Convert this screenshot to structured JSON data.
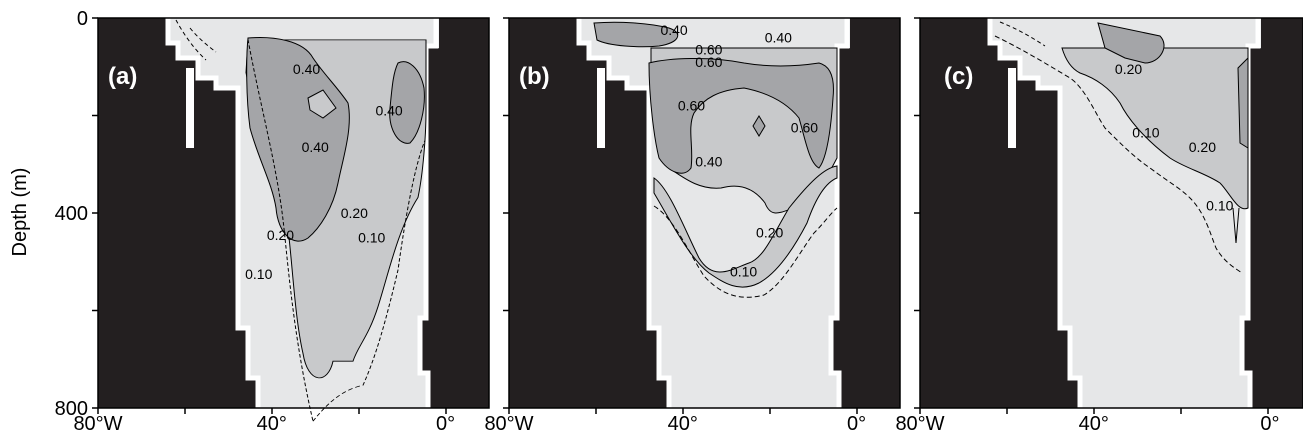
{
  "chart_data": [
    {
      "type": "contour",
      "panel_label": "(a)",
      "ylabel": "Depth (m)",
      "xlim": [
        -80,
        10
      ],
      "ylim": [
        0,
        800
      ],
      "x_ticks": [
        -80,
        -40,
        0
      ],
      "x_tick_labels": [
        "80°W",
        "40°",
        "0°"
      ],
      "y_ticks": [
        0,
        400,
        800
      ],
      "y_tick_labels": [
        "0",
        "400",
        "800"
      ],
      "contour_levels": [
        "0.10",
        "0.20",
        "0.40"
      ],
      "contour_labels": [
        {
          "text": "0.40",
          "x": -32,
          "y": 115
        },
        {
          "text": "0.40",
          "x": -30,
          "y": 275
        },
        {
          "text": "0.40",
          "x": -13,
          "y": 200
        },
        {
          "text": "0.20",
          "x": -38,
          "y": 455
        },
        {
          "text": "0.20",
          "x": -21,
          "y": 410
        },
        {
          "text": "0.10",
          "x": -17,
          "y": 460
        },
        {
          "text": "0.10",
          "x": -43,
          "y": 535
        }
      ]
    },
    {
      "type": "contour",
      "panel_label": "(b)",
      "ylabel": "",
      "xlim": [
        -80,
        10
      ],
      "ylim": [
        0,
        800
      ],
      "x_ticks": [
        -80,
        -40,
        0
      ],
      "x_tick_labels": [
        "80°W",
        "40°",
        "0°"
      ],
      "y_ticks": [
        0,
        400,
        800
      ],
      "y_tick_labels": [],
      "contour_levels": [
        "0.10",
        "0.20",
        "0.40",
        "0.60"
      ],
      "contour_labels": [
        {
          "text": "0.40",
          "x": -42,
          "y": 35
        },
        {
          "text": "0.40",
          "x": -18,
          "y": 50
        },
        {
          "text": "0.60",
          "x": -34,
          "y": 75
        },
        {
          "text": "0.60",
          "x": -34,
          "y": 100
        },
        {
          "text": "0.60",
          "x": -38,
          "y": 190
        },
        {
          "text": "0.60",
          "x": -12,
          "y": 235
        },
        {
          "text": "0.40",
          "x": -34,
          "y": 305
        },
        {
          "text": "0.20",
          "x": -20,
          "y": 450
        },
        {
          "text": "0.10",
          "x": -26,
          "y": 530
        }
      ]
    },
    {
      "type": "contour",
      "panel_label": "(c)",
      "ylabel": "",
      "xlim": [
        -80,
        10
      ],
      "ylim": [
        0,
        800
      ],
      "x_ticks": [
        -80,
        -40,
        0
      ],
      "x_tick_labels": [
        "80°W",
        "40°",
        "0°"
      ],
      "y_ticks": [
        0,
        400,
        800
      ],
      "y_tick_labels": [],
      "contour_levels": [
        "0.10",
        "0.20"
      ],
      "contour_labels": [
        {
          "text": "0.20",
          "x": -32,
          "y": 115
        },
        {
          "text": "0.10",
          "x": -28,
          "y": 245
        },
        {
          "text": "0.20",
          "x": -15,
          "y": 275
        },
        {
          "text": "0.10",
          "x": -11,
          "y": 395
        }
      ]
    }
  ],
  "colors": {
    "land": "#231f20",
    "shade_low": "#e6e7e8",
    "shade_mid": "#c8c9cb",
    "shade_high": "#a4a5a8",
    "panel_label_color": "#ffffff"
  }
}
